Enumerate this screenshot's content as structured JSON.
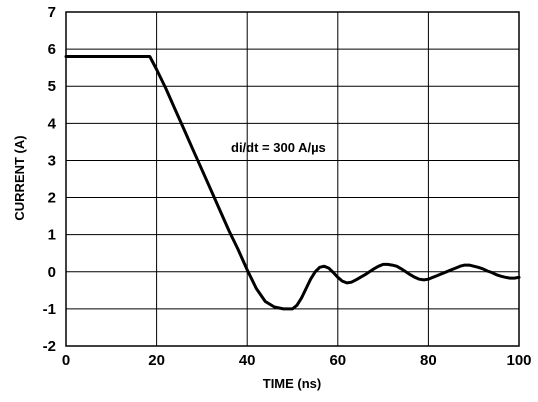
{
  "chart_data": {
    "type": "line",
    "title": "",
    "xlabel": "TIME (ns)",
    "ylabel": "CURRENT (A)",
    "xlim": [
      0,
      100
    ],
    "ylim": [
      -2,
      7
    ],
    "x_ticks": [
      "0",
      "20",
      "40",
      "60",
      "80",
      "100"
    ],
    "y_ticks": [
      "7",
      "6",
      "5",
      "4",
      "3",
      "2",
      "1",
      "0",
      "-1",
      "-2"
    ],
    "grid": true,
    "legend": "none",
    "line_color": "#000000",
    "annotation": "di/dt = 300 A/µs",
    "series": [
      {
        "x": [
          0,
          18.5,
          20,
          22,
          24,
          26,
          28,
          30,
          32,
          34,
          36,
          38,
          40,
          42,
          44,
          46,
          48,
          50,
          51,
          52,
          53,
          54,
          55,
          56,
          57,
          58,
          59,
          60,
          61,
          62,
          63,
          64,
          65,
          66,
          67,
          68,
          69,
          70,
          71,
          72,
          73,
          74,
          75,
          76,
          77,
          78,
          79,
          80,
          81,
          82,
          83,
          84,
          85,
          86,
          87,
          88,
          89,
          90,
          91,
          92,
          93,
          94,
          95,
          96,
          97,
          98,
          99,
          100
        ],
        "values": [
          5.8,
          5.8,
          5.45,
          4.95,
          4.4,
          3.85,
          3.3,
          2.75,
          2.2,
          1.65,
          1.1,
          0.6,
          0.05,
          -0.45,
          -0.8,
          -0.95,
          -1.0,
          -1.0,
          -0.9,
          -0.7,
          -0.45,
          -0.2,
          0.0,
          0.12,
          0.15,
          0.1,
          -0.02,
          -0.15,
          -0.25,
          -0.3,
          -0.28,
          -0.22,
          -0.15,
          -0.08,
          0.0,
          0.08,
          0.15,
          0.2,
          0.2,
          0.18,
          0.15,
          0.08,
          0.0,
          -0.08,
          -0.15,
          -0.2,
          -0.22,
          -0.2,
          -0.15,
          -0.1,
          -0.05,
          0.0,
          0.05,
          0.1,
          0.15,
          0.18,
          0.18,
          0.15,
          0.12,
          0.08,
          0.02,
          -0.02,
          -0.08,
          -0.12,
          -0.15,
          -0.17,
          -0.17,
          -0.15
        ]
      }
    ]
  }
}
